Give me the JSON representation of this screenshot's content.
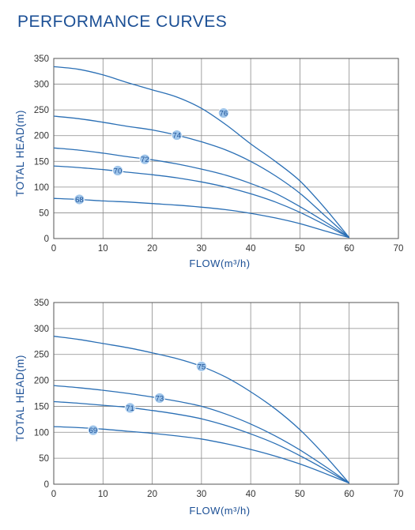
{
  "page": {
    "title": "PERFORMANCE CURVES"
  },
  "chart_data": [
    {
      "type": "line",
      "title": "",
      "xlabel": "FLOW(m³/h)",
      "ylabel": "TOTAL HEAD(m)",
      "xlim": [
        0,
        70
      ],
      "ylim": [
        0,
        350
      ],
      "xticks": [
        0,
        10,
        20,
        30,
        40,
        50,
        60,
        70
      ],
      "yticks": [
        0,
        50,
        100,
        150,
        200,
        250,
        300,
        350
      ],
      "grid": true,
      "line_color": "#2a6fb5",
      "marker_color": "#9fc5ea",
      "series": [
        {
          "name": "76",
          "label_at": [
            34.5,
            244
          ],
          "x": [
            0,
            5,
            10,
            15,
            20,
            25,
            30,
            35,
            40,
            45,
            50,
            55,
            60
          ],
          "y": [
            334,
            329,
            318,
            303,
            289,
            275,
            253,
            221,
            184,
            150,
            112,
            60,
            2
          ]
        },
        {
          "name": "74",
          "label_at": [
            25,
            201
          ],
          "x": [
            0,
            5,
            10,
            15,
            20,
            25,
            30,
            35,
            40,
            45,
            50,
            55,
            60
          ],
          "y": [
            238,
            233,
            226,
            218,
            211,
            201,
            188,
            172,
            150,
            122,
            88,
            45,
            2
          ]
        },
        {
          "name": "72",
          "label_at": [
            18.5,
            154
          ],
          "x": [
            0,
            5,
            10,
            15,
            20,
            25,
            30,
            35,
            40,
            45,
            50,
            55,
            60
          ],
          "y": [
            176,
            172,
            166,
            159,
            153,
            145,
            135,
            123,
            107,
            88,
            62,
            33,
            2
          ]
        },
        {
          "name": "70",
          "label_at": [
            13,
            132
          ],
          "x": [
            0,
            5,
            10,
            15,
            20,
            25,
            30,
            35,
            40,
            45,
            50,
            55,
            60
          ],
          "y": [
            141,
            138,
            134,
            129,
            124,
            118,
            110,
            100,
            87,
            71,
            51,
            27,
            2
          ]
        },
        {
          "name": "68",
          "label_at": [
            5.2,
            76
          ],
          "x": [
            0,
            5,
            10,
            15,
            20,
            25,
            30,
            35,
            40,
            45,
            50,
            55,
            60
          ],
          "y": [
            78,
            76,
            73,
            71,
            68,
            65,
            61,
            56,
            49,
            40,
            29,
            15,
            2
          ]
        }
      ]
    },
    {
      "type": "line",
      "title": "",
      "xlabel": "FLOW(m³/h)",
      "ylabel": "TOTAL HEAD(m)",
      "xlim": [
        0,
        70
      ],
      "ylim": [
        0,
        350
      ],
      "xticks": [
        0,
        10,
        20,
        30,
        40,
        50,
        60,
        70
      ],
      "yticks": [
        0,
        50,
        100,
        150,
        200,
        250,
        300,
        350
      ],
      "grid": true,
      "line_color": "#2a6fb5",
      "marker_color": "#9fc5ea",
      "series": [
        {
          "name": "75",
          "label_at": [
            30,
            227
          ],
          "x": [
            0,
            5,
            10,
            15,
            20,
            25,
            30,
            35,
            40,
            45,
            50,
            55,
            60
          ],
          "y": [
            285,
            279,
            271,
            263,
            253,
            242,
            227,
            206,
            178,
            145,
            105,
            56,
            2
          ]
        },
        {
          "name": "73",
          "label_at": [
            21.5,
            166
          ],
          "x": [
            0,
            5,
            10,
            15,
            20,
            25,
            30,
            35,
            40,
            45,
            50,
            55,
            60
          ],
          "y": [
            190,
            186,
            181,
            175,
            168,
            160,
            150,
            135,
            116,
            93,
            66,
            35,
            2
          ]
        },
        {
          "name": "71",
          "label_at": [
            15.5,
            147
          ],
          "x": [
            0,
            5,
            10,
            15,
            20,
            25,
            30,
            35,
            40,
            45,
            50,
            55,
            60
          ],
          "y": [
            159,
            156,
            152,
            148,
            142,
            135,
            126,
            113,
            97,
            78,
            55,
            29,
            2
          ]
        },
        {
          "name": "69",
          "label_at": [
            8,
            104
          ],
          "x": [
            0,
            5,
            10,
            15,
            20,
            25,
            30,
            35,
            40,
            45,
            50,
            55,
            60
          ],
          "y": [
            111,
            109,
            106,
            102,
            98,
            93,
            87,
            78,
            67,
            54,
            39,
            21,
            2
          ]
        }
      ]
    }
  ]
}
